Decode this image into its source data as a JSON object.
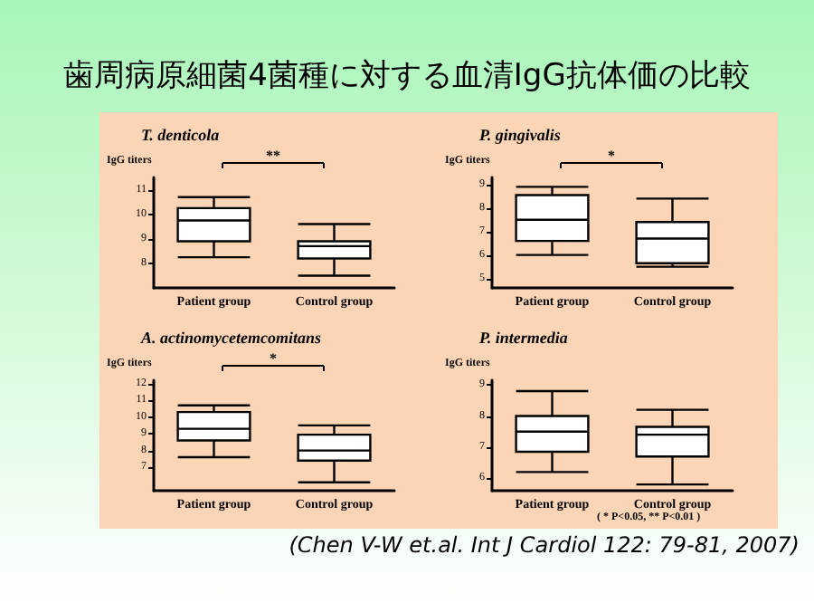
{
  "chart_data": [
    {
      "type": "other",
      "title": "歯周病原細菌4菌種に対する血清IgG抗体価の比較",
      "annotations": [
        "( * P<0.05, ** P<0.01 )",
        "(Chen V-W et.al. Int J Cardiol 122: 79-81, 2007)"
      ]
    },
    {
      "type": "box",
      "title": "T. denticola",
      "ylabel": "IgG titers",
      "categories": [
        "Patient group",
        "Control group"
      ],
      "boxes": [
        {
          "low": 8.25,
          "q1": 8.9,
          "median": 9.75,
          "q3": 10.25,
          "high": 10.7
        },
        {
          "low": 7.5,
          "q1": 8.2,
          "median": 8.7,
          "q3": 8.9,
          "high": 9.6
        }
      ],
      "ylim": [
        7,
        11.5
      ],
      "yticks": [
        8,
        9,
        10,
        11
      ],
      "annotations": [
        "**"
      ],
      "grid": false
    },
    {
      "type": "box",
      "title": "P. gingivalis",
      "ylabel": "IgG titers",
      "categories": [
        "Patient group",
        "Control group"
      ],
      "boxes": [
        {
          "low": 6.0,
          "q1": 6.6,
          "median": 7.5,
          "q3": 8.55,
          "high": 8.9
        },
        {
          "low": 5.5,
          "q1": 5.65,
          "median": 6.7,
          "q3": 7.4,
          "high": 8.4
        }
      ],
      "ylim": [
        4.6,
        9.3
      ],
      "yticks": [
        5,
        6,
        7,
        8,
        9
      ],
      "annotations": [
        "*"
      ],
      "grid": false
    },
    {
      "type": "box",
      "title": "A. actinomycetemcomitans",
      "ylabel": "IgG titers",
      "categories": [
        "Patient group",
        "Control group"
      ],
      "boxes": [
        {
          "low": 7.6,
          "q1": 8.6,
          "median": 9.3,
          "q3": 10.3,
          "high": 10.7
        },
        {
          "low": 6.1,
          "q1": 7.4,
          "median": 8.0,
          "q3": 8.95,
          "high": 9.5
        }
      ],
      "ylim": [
        5.6,
        12.2
      ],
      "yticks": [
        7,
        8,
        9,
        10,
        11,
        12
      ],
      "annotations": [
        "*"
      ],
      "grid": false
    },
    {
      "type": "box",
      "title": "P. intermedia",
      "ylabel": "IgG titers",
      "categories": [
        "Patient group",
        "Control group"
      ],
      "boxes": [
        {
          "low": 6.2,
          "q1": 6.85,
          "median": 7.5,
          "q3": 8.0,
          "high": 8.8
        },
        {
          "low": 5.8,
          "q1": 6.7,
          "median": 7.4,
          "q3": 7.65,
          "high": 8.2
        }
      ],
      "ylim": [
        5.6,
        9.15
      ],
      "yticks": [
        6,
        7,
        8,
        9
      ],
      "grid": false
    }
  ]
}
